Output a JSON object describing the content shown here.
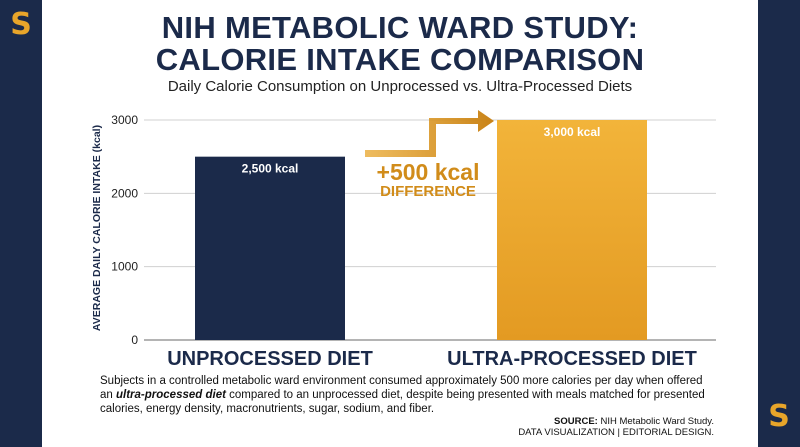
{
  "title_line1": "NIH METABOLIC WARD STUDY:",
  "title_line2": "CALORIE INTAKE COMPARISON",
  "subtitle": "Daily Calorie Consumption on Unprocessed vs. Ultra-Processed Diets",
  "annotation": {
    "value": "+500 kcal",
    "label": "DIFFERENCE"
  },
  "footnote": {
    "part1": "Subjects in a controlled metabolic ward environment consumed approximately 500 more calories per day when offered an ",
    "emphasis": "ultra-processed diet",
    "part2": " compared to an unprocessed diet, despite being presented with meals matched for presented calories, energy density, macronutrients, sugar, sodium, and fiber."
  },
  "source": {
    "label": "SOURCE:",
    "text": " NIH Metabolic Ward Study.",
    "line2": "DATA VISUALIZATION | EDITORIAL DESIGN."
  },
  "colors": {
    "navy": "#1b2a4a",
    "gold": "#e8a52a",
    "gold_dark": "#d18c1a"
  },
  "chart_data": {
    "type": "bar",
    "categories": [
      "UNPROCESSED DIET",
      "ULTRA-PROCESSED DIET"
    ],
    "values": [
      2500,
      3000
    ],
    "data_labels": [
      "2,500 kcal",
      "3,000 kcal"
    ],
    "bar_colors": [
      "#1b2a4a",
      "#e8a52a"
    ],
    "ylabel": "AVERAGE DAILY CALORIE INTAKE (kcal)",
    "ylim": [
      0,
      3000
    ],
    "yticks": [
      0,
      1000,
      2000,
      3000
    ],
    "grid": true
  }
}
